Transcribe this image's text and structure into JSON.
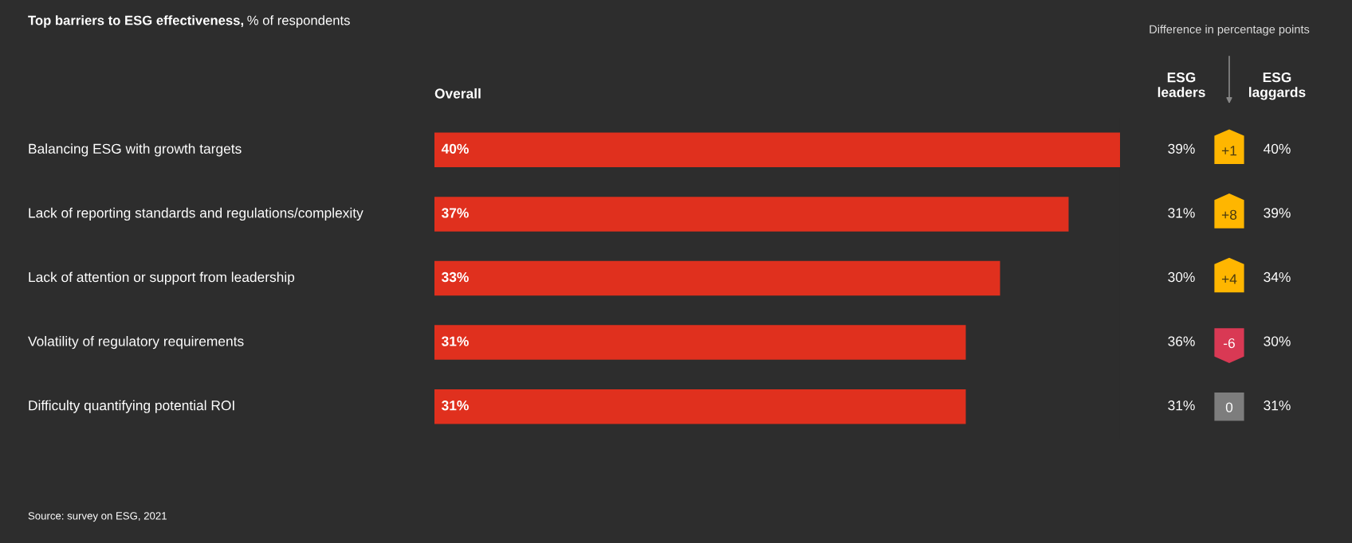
{
  "chart_data": [
    {
      "type": "bar",
      "orientation": "horizontal",
      "title": "Top barriers to ESG effectiveness,",
      "subtitle": "% of respondents",
      "categories": [
        "Balancing ESG with growth targets",
        "Lack of reporting standards and regulations/complexity",
        "Lack of attention or support from leadership",
        "Volatility of regulatory requirements",
        "Difficulty quantifying potential ROI"
      ],
      "series": [
        {
          "name": "Overall",
          "color": "#e0301e",
          "values": [
            40,
            37,
            33,
            31,
            31
          ],
          "value_labels": [
            "40%",
            "37%",
            "33%",
            "31%",
            "31%"
          ]
        }
      ],
      "annotations": [
        "Source: survey on ESG, 2021"
      ]
    },
    {
      "type": "heatmap",
      "title": "Difference in percentage points",
      "categories": [
        "ESG leaders",
        null,
        "ESG laggards"
      ],
      "y_categories": [
        null,
        null,
        null,
        null,
        null
      ],
      "cells": [
        [
          39,
          1,
          40
        ],
        [
          31,
          8,
          39
        ],
        [
          30,
          4,
          34
        ],
        [
          36,
          -6,
          30
        ],
        [
          31,
          0,
          31
        ]
      ],
      "cell_labels": [
        [
          "39%",
          "+1",
          "40%"
        ],
        [
          "31%",
          "+8",
          "39%"
        ],
        [
          "30%",
          "+4",
          "34%"
        ],
        [
          "36%",
          "-6",
          "30%"
        ],
        [
          "31%",
          "0",
          "31%"
        ]
      ],
      "colors": [
        [
          null,
          "#ffb600",
          null
        ],
        [
          null,
          "#ffb600",
          null
        ],
        [
          null,
          "#ffb600",
          null
        ],
        [
          null,
          "#d93954",
          null
        ],
        [
          null,
          "#7d7d7d",
          null
        ]
      ]
    }
  ]
}
